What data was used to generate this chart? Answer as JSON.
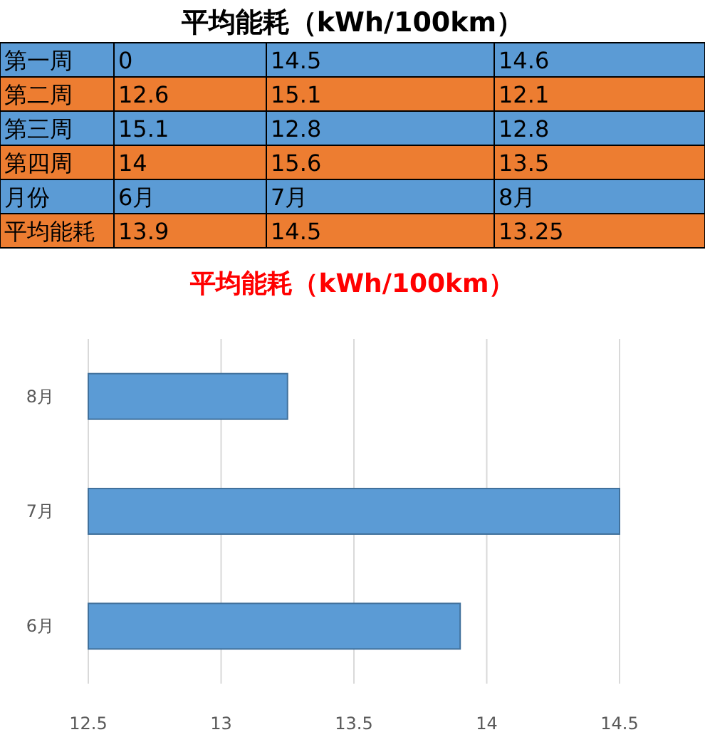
{
  "chart_data": {
    "type": "bar",
    "orientation": "horizontal",
    "title": "平均能耗（kWh/100km）",
    "categories": [
      "8月",
      "7月",
      "6月"
    ],
    "values": [
      13.25,
      14.5,
      13.9
    ],
    "color": "#5b9bd5",
    "xlim": [
      12.5,
      14.5
    ],
    "xticks": [
      12.5,
      13,
      13.5,
      14,
      14.5
    ],
    "grid": "x",
    "annotations": [
      "平均能耗（kWh/100km）",
      "第一周",
      "0",
      "14.5",
      "14.6",
      "第二周",
      "12.6",
      "15.1",
      "12.1",
      "第三周",
      "15.1",
      "12.8",
      "12.8",
      "第四周",
      "14",
      "15.6",
      "13.5",
      "月份",
      "6月",
      "7月",
      "8月",
      "平均能耗",
      "13.9",
      "14.5",
      "13.25"
    ]
  }
}
